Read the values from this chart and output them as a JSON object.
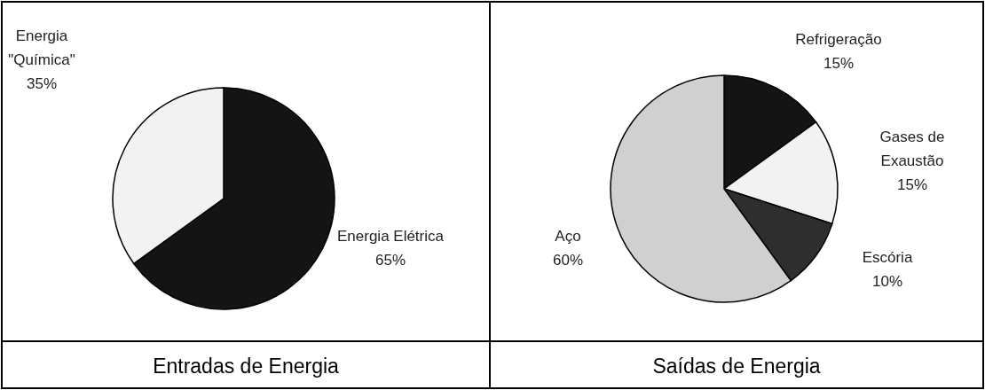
{
  "chart_data": [
    {
      "type": "pie",
      "title": "Entradas de Energia",
      "categories": [
        "Energia Elétrica",
        "Energia \"Química\""
      ],
      "values": [
        65,
        35
      ],
      "colors": [
        "#141414",
        "#f2f2f2"
      ],
      "value_labels": [
        "65%",
        "35%"
      ]
    },
    {
      "type": "pie",
      "title": "Saídas de Energia",
      "categories": [
        "Refrigeração",
        "Gases de Exaustão",
        "Escória",
        "Aço"
      ],
      "values": [
        15,
        15,
        10,
        60
      ],
      "colors": [
        "#141414",
        "#f2f2f2",
        "#2e2e2e",
        "#d0d0d0"
      ],
      "value_labels": [
        "15%",
        "15%",
        "10%",
        "60%"
      ]
    }
  ]
}
